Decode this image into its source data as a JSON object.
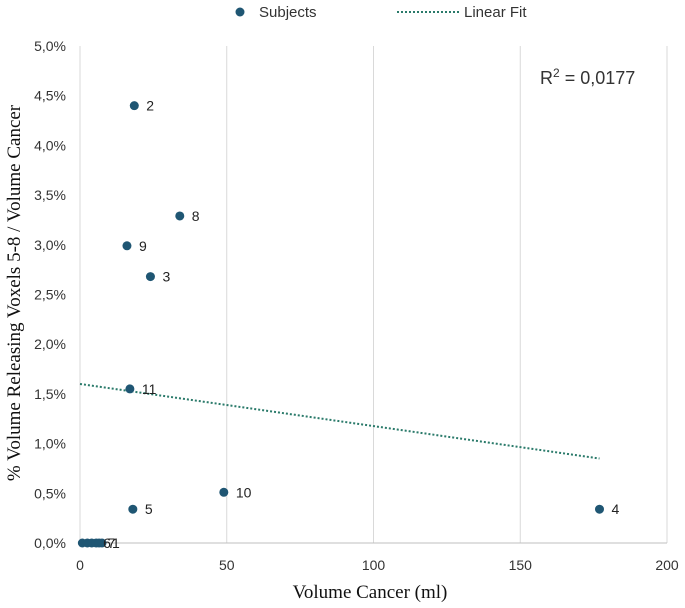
{
  "chart_data": {
    "type": "scatter",
    "xlabel": "Volume Cancer (ml)",
    "ylabel": "% Volume Releasing Voxels 5-8 / Volume Cancer",
    "xlim": [
      0,
      200
    ],
    "ylim": [
      0,
      5
    ],
    "x_ticks": [
      0,
      50,
      100,
      150,
      200
    ],
    "x_tick_labels": [
      "0",
      "50",
      "100",
      "150",
      "200"
    ],
    "y_ticks": [
      0,
      0.5,
      1,
      1.5,
      2,
      2.5,
      3,
      3.5,
      4,
      4.5,
      5
    ],
    "y_tick_labels": [
      "0,0%",
      "0,5%",
      "1,0%",
      "1,5%",
      "2,0%",
      "2,5%",
      "3,0%",
      "3,5%",
      "4,0%",
      "4,5%",
      "5,0%"
    ],
    "grid": "vertical",
    "legend_position": "top-center",
    "annotation": {
      "prefix": "R",
      "superscript": "2",
      "suffix": " = 0,0177"
    },
    "series": [
      {
        "name": "Subjects",
        "color": "#1f5673",
        "points": [
          {
            "label": "2",
            "x": 18.5,
            "y": 4.4
          },
          {
            "label": "8",
            "x": 34,
            "y": 3.29
          },
          {
            "label": "9",
            "x": 16,
            "y": 2.99
          },
          {
            "label": "3",
            "x": 24,
            "y": 2.68
          },
          {
            "label": "11",
            "x": 17,
            "y": 1.55
          },
          {
            "label": "10",
            "x": 49,
            "y": 0.51
          },
          {
            "label": "5",
            "x": 18,
            "y": 0.34
          },
          {
            "label": "4",
            "x": 177,
            "y": 0.34
          },
          {
            "label": "",
            "x": 0.8,
            "y": 0
          },
          {
            "label": "",
            "x": 2.5,
            "y": 0
          },
          {
            "label": "",
            "x": 4,
            "y": 0
          },
          {
            "label": "6",
            "x": 5.5,
            "y": 0
          },
          {
            "label": "7",
            "x": 6.5,
            "y": 0
          },
          {
            "label": "1",
            "x": 7.5,
            "y": 0
          }
        ]
      },
      {
        "name": "Linear Fit",
        "color": "#2a7a6a",
        "style": "dotted",
        "x": [
          0,
          177
        ],
        "y": [
          1.6,
          0.85
        ]
      }
    ]
  }
}
